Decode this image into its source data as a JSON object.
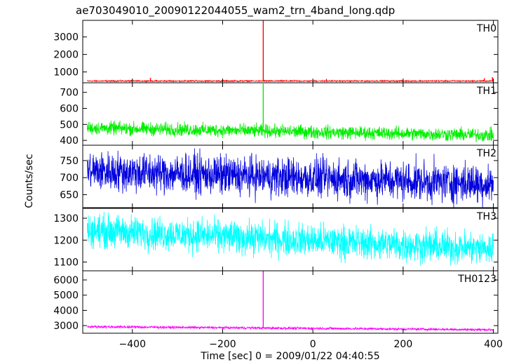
{
  "chart_data": {
    "type": "line",
    "title": "ae703049010_20090122044055_wam2_trn_4band_long.qdp",
    "xlabel": "Time [sec] 0 = 2009/01/22 04:40:55",
    "ylabel": "Counts/sec",
    "xlim": [
      -510,
      410
    ],
    "xticks": [
      -400,
      -200,
      0,
      200,
      400
    ],
    "grid": false,
    "panels": [
      {
        "name": "TH0",
        "color": "#ff0000",
        "ylim": [
          380,
          3950
        ],
        "yticks": [
          1000,
          2000,
          3000
        ],
        "baseline": 480,
        "noise": 28,
        "trend": 0,
        "spikes": [
          {
            "x": -110,
            "y": 3950
          },
          {
            "x": -360,
            "y": 660
          },
          {
            "x": 30,
            "y": 600
          },
          {
            "x": 380,
            "y": 640
          },
          {
            "x": 398,
            "y": 700
          }
        ]
      },
      {
        "name": "TH1",
        "color": "#00ee00",
        "ylim": [
          370,
          760
        ],
        "yticks": [
          400,
          500,
          600,
          700
        ],
        "baseline": 478,
        "noise": 30,
        "trend": -45,
        "spikes": [
          {
            "x": -110,
            "y": 755
          }
        ]
      },
      {
        "name": "TH2",
        "color": "#0000dd",
        "ylim": [
          612,
          795
        ],
        "yticks": [
          650,
          700,
          750
        ],
        "baseline": 720,
        "noise": 42,
        "trend": -38,
        "spikes": []
      },
      {
        "name": "TH3",
        "color": "#00ffff",
        "ylim": [
          1060,
          1345
        ],
        "yticks": [
          1100,
          1200,
          1300
        ],
        "baseline": 1245,
        "noise": 55,
        "trend": -85,
        "spikes": []
      },
      {
        "name": "TH0123",
        "color": "#ff00ff",
        "ylim": [
          2500,
          6600
        ],
        "yticks": [
          3000,
          4000,
          5000,
          6000
        ],
        "baseline": 2930,
        "noise": 60,
        "trend": -200,
        "spikes": [
          {
            "x": -110,
            "y": 6600
          }
        ]
      }
    ]
  }
}
